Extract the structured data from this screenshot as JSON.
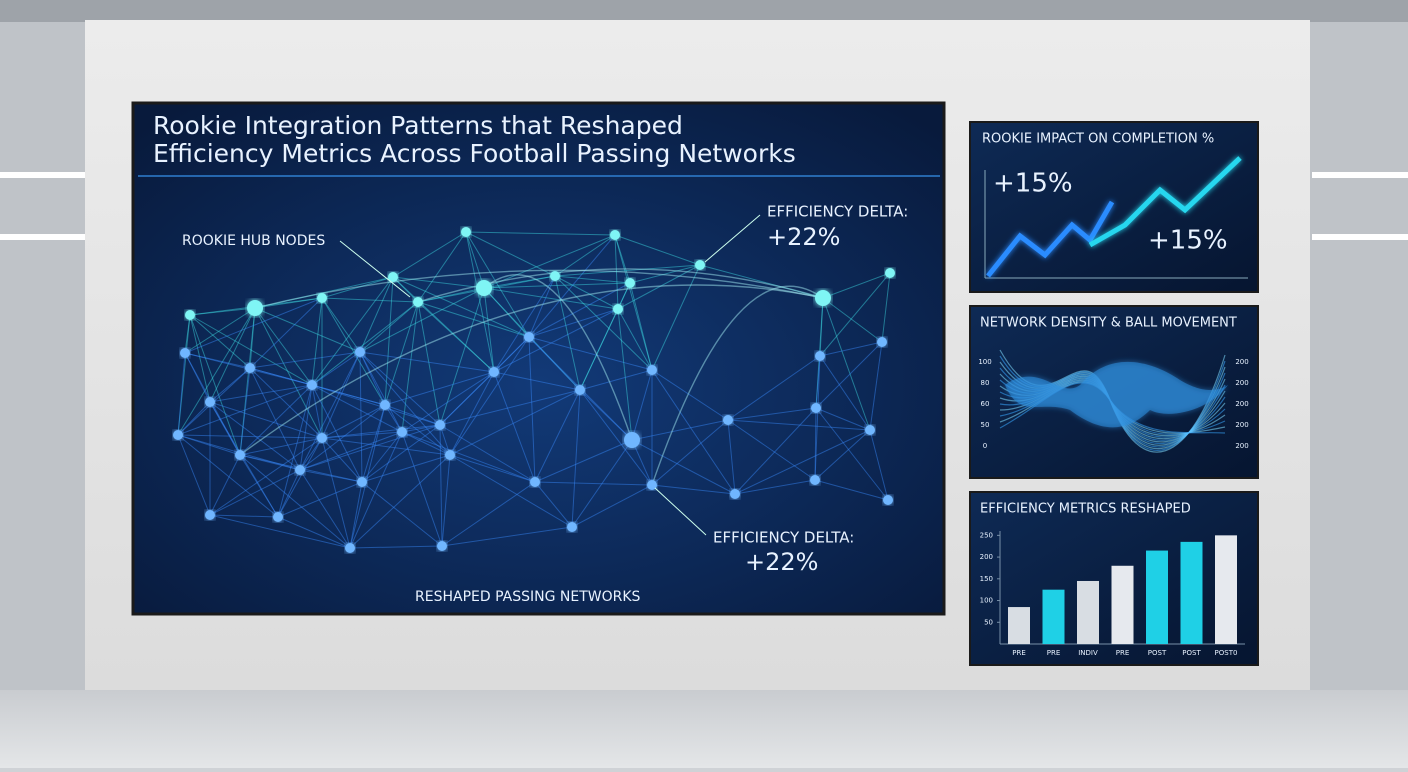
{
  "main_screen": {
    "title_lines": [
      "Rookie Integration Patterns that Reshaped",
      "Efficiency Metrics Across Football Passing Networks"
    ],
    "hub_label": "ROOKIE HUB NODES",
    "delta_top": {
      "label": "EFFICIENCY DELTA:",
      "value": "+22%"
    },
    "delta_bottom": {
      "label": "EFFICIENCY DELTA:",
      "value": "+22%"
    },
    "caption": "RESHAPED PASSING NETWORKS"
  },
  "completion_panel": {
    "title": "ROOKIE IMPACT ON COMPLETION %",
    "value_left": "+15%",
    "value_right": "+15%"
  },
  "density_panel": {
    "title": "NETWORK DENSITY & BALL MOVEMENT",
    "left_ticks": [
      "100",
      "80",
      "60",
      "50",
      "0"
    ],
    "right_ticks": [
      "200",
      "200",
      "200",
      "200",
      "200"
    ]
  },
  "chart_data": {
    "type": "bar",
    "title": "EFFICIENCY METRICS RESHAPED",
    "categories": [
      "PRE",
      "PRE",
      "INDIV",
      "PRE",
      "POST",
      "POST",
      "POST0"
    ],
    "values": [
      85,
      125,
      145,
      180,
      215,
      235,
      250
    ],
    "colors": [
      "#d8dde3",
      "#1fd0e6",
      "#d8dde3",
      "#e6e9ee",
      "#1fd0e6",
      "#1fd0e6",
      "#e6e9ee"
    ],
    "ylim": [
      0,
      260
    ],
    "yticks": [
      50,
      100,
      150,
      200,
      250
    ]
  }
}
